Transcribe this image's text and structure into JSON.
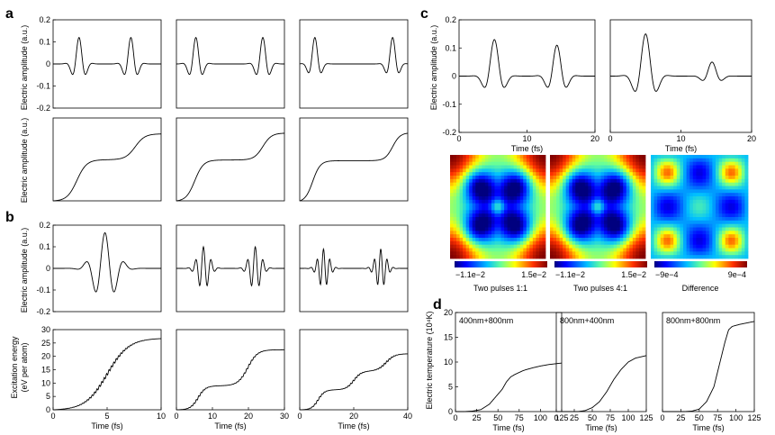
{
  "panel_labels": {
    "a": "a",
    "b": "b",
    "c": "c",
    "d": "d"
  },
  "labels": {
    "electric_amplitude": "Electric amplitude (a.u.)",
    "excitation_energy": "Excitation energy",
    "excitation_energy_unit": "(eV per atom)",
    "electric_temperature": "Electric temperature (10⁴K)",
    "time_fs": "Time (fs)"
  },
  "colorbars": [
    {
      "min": "−1.1e−2",
      "max": "1.5e−2",
      "caption": "Two pulses 1:1"
    },
    {
      "min": "−1.1e−2",
      "max": "1.5e−2",
      "caption": "Two pulses 4:1"
    },
    {
      "min": "−9e−4",
      "max": "9e−4",
      "caption": "Difference"
    }
  ],
  "chart_data": [
    {
      "id": "a1",
      "type": "line",
      "ylim": [
        -0.2,
        0.2
      ],
      "yticks": [
        -0.2,
        -0.1,
        0,
        0.1,
        0.2
      ],
      "ylabel": "Electric amplitude (a.u.)",
      "pulses": [
        {
          "center": 0.24,
          "width": 0.1,
          "amp": 0.12,
          "freq": 7
        },
        {
          "center": 0.72,
          "width": 0.1,
          "amp": 0.12,
          "freq": 7
        }
      ]
    },
    {
      "id": "a2",
      "type": "line",
      "ylim": [
        -0.2,
        0.2
      ],
      "yticks": [],
      "pulses": [
        {
          "center": 0.18,
          "width": 0.1,
          "amp": 0.12,
          "freq": 7
        },
        {
          "center": 0.8,
          "width": 0.1,
          "amp": 0.12,
          "freq": 7
        }
      ]
    },
    {
      "id": "a3",
      "type": "line",
      "ylim": [
        -0.2,
        0.2
      ],
      "yticks": [],
      "pulses": [
        {
          "center": 0.14,
          "width": 0.09,
          "amp": 0.12,
          "freq": 7
        },
        {
          "center": 0.86,
          "width": 0.09,
          "amp": 0.12,
          "freq": 7
        }
      ]
    },
    {
      "id": "a4",
      "type": "line",
      "ylim": [
        0,
        0.8
      ],
      "yticks": [],
      "ylabel": "Electric amplitude (a.u.)",
      "steps": [
        {
          "center": 0.22,
          "width": 0.045,
          "height": 0.4
        },
        {
          "center": 0.76,
          "width": 0.045,
          "height": 0.25
        }
      ]
    },
    {
      "id": "a5",
      "type": "line",
      "ylim": [
        0,
        0.8
      ],
      "yticks": [],
      "steps": [
        {
          "center": 0.17,
          "width": 0.04,
          "height": 0.4
        },
        {
          "center": 0.8,
          "width": 0.04,
          "height": 0.26
        }
      ]
    },
    {
      "id": "a6",
      "type": "line",
      "ylim": [
        0,
        0.8
      ],
      "yticks": [],
      "steps": [
        {
          "center": 0.12,
          "width": 0.035,
          "height": 0.4
        },
        {
          "center": 0.86,
          "width": 0.035,
          "height": 0.27
        }
      ]
    },
    {
      "id": "b1",
      "type": "line",
      "ylim": [
        -0.2,
        0.2
      ],
      "yticks": [
        -0.2,
        -0.1,
        0,
        0.1,
        0.2
      ],
      "ylabel": "Electric amplitude (a.u.)",
      "pulses": [
        {
          "center": 0.48,
          "width": 0.2,
          "amp": 0.165,
          "freq": 5.5
        }
      ]
    },
    {
      "id": "b2",
      "type": "line",
      "ylim": [
        -0.2,
        0.2
      ],
      "yticks": [],
      "pulses": [
        {
          "center": 0.25,
          "width": 0.11,
          "amp": 0.1,
          "freq": 14
        },
        {
          "center": 0.73,
          "width": 0.11,
          "amp": 0.1,
          "freq": 14
        }
      ]
    },
    {
      "id": "b3",
      "type": "line",
      "ylim": [
        -0.2,
        0.2
      ],
      "yticks": [],
      "pulses": [
        {
          "center": 0.22,
          "width": 0.1,
          "amp": 0.09,
          "freq": 17
        },
        {
          "center": 0.75,
          "width": 0.1,
          "amp": 0.09,
          "freq": 17
        }
      ]
    },
    {
      "id": "b4",
      "type": "line",
      "xlim": [
        0,
        10
      ],
      "xticks": [
        0,
        5,
        10
      ],
      "xlabel": "Time (fs)",
      "ylim": [
        0,
        30
      ],
      "yticks": [
        0,
        5,
        10,
        15,
        20,
        25,
        30
      ],
      "steps": [
        {
          "center": 0.5,
          "width": 0.1,
          "height": 27
        }
      ],
      "wiggle": 0.6
    },
    {
      "id": "b5",
      "type": "line",
      "xlim": [
        0,
        30
      ],
      "xticks": [
        0,
        10,
        20,
        30
      ],
      "xlabel": "Time (fs)",
      "ylim": [
        0,
        30
      ],
      "yticks": [],
      "steps": [
        {
          "center": 0.2,
          "width": 0.035,
          "height": 9
        },
        {
          "center": 0.66,
          "width": 0.045,
          "height": 13.5
        }
      ],
      "wiggle": 0.4
    },
    {
      "id": "b6",
      "type": "line",
      "xlim": [
        0,
        40
      ],
      "xticks": [
        0,
        20,
        40
      ],
      "xlabel": "Time (fs)",
      "ylim": [
        0,
        30
      ],
      "yticks": [],
      "steps": [
        {
          "center": 0.17,
          "width": 0.03,
          "height": 7.5
        },
        {
          "center": 0.5,
          "width": 0.035,
          "height": 7
        },
        {
          "center": 0.8,
          "width": 0.04,
          "height": 6.5
        }
      ],
      "wiggle": 0.35
    },
    {
      "id": "c1",
      "type": "line",
      "xlim": [
        0,
        20
      ],
      "xticks": [
        0,
        10,
        20
      ],
      "xlabel": "Time (fs)",
      "ylim": [
        -0.2,
        0.2
      ],
      "yticks": [
        -0.2,
        -0.1,
        0,
        0.1,
        0.2
      ],
      "ylabel": "Electric amplitude (a.u.)",
      "pulses": [
        {
          "center": 0.26,
          "width": 0.11,
          "amp": 0.13,
          "freq": 5.5
        },
        {
          "center": 0.72,
          "width": 0.11,
          "amp": 0.11,
          "freq": 6
        }
      ]
    },
    {
      "id": "c2",
      "type": "line",
      "xlim": [
        0,
        20
      ],
      "xticks": [
        0,
        10,
        20
      ],
      "xlabel": "Time (fs)",
      "ylim": [
        -0.2,
        0.2
      ],
      "yticks": [],
      "pulses": [
        {
          "center": 0.25,
          "width": 0.12,
          "amp": 0.15,
          "freq": 5.5
        },
        {
          "center": 0.72,
          "width": 0.1,
          "amp": 0.05,
          "freq": 6
        }
      ]
    },
    {
      "id": "d1",
      "type": "line",
      "annotation": "400nm+800nm",
      "xlim": [
        0,
        125
      ],
      "xticks": [
        0,
        25,
        50,
        75,
        100,
        125
      ],
      "xlabel": "Time (fs)",
      "ylim": [
        0,
        20
      ],
      "yticks": [
        0,
        5,
        10,
        15,
        20
      ],
      "ylabel": "Electric temperature (10⁴K)",
      "points": [
        [
          0,
          0
        ],
        [
          10,
          0
        ],
        [
          20,
          0.1
        ],
        [
          30,
          0.4
        ],
        [
          40,
          1.5
        ],
        [
          50,
          3.5
        ],
        [
          55,
          4.5
        ],
        [
          60,
          6
        ],
        [
          65,
          7
        ],
        [
          70,
          7.5
        ],
        [
          80,
          8.3
        ],
        [
          90,
          8.8
        ],
        [
          100,
          9.2
        ],
        [
          110,
          9.5
        ],
        [
          125,
          9.8
        ]
      ]
    },
    {
      "id": "d2",
      "type": "line",
      "annotation": "800nm+400nm",
      "xlim": [
        0,
        125
      ],
      "xticks": [
        0,
        25,
        50,
        75,
        100,
        125
      ],
      "xlabel": "Time (fs)",
      "ylim": [
        0,
        20
      ],
      "yticks": [],
      "points": [
        [
          0,
          0
        ],
        [
          20,
          0
        ],
        [
          30,
          0
        ],
        [
          40,
          0.2
        ],
        [
          50,
          0.8
        ],
        [
          60,
          2
        ],
        [
          70,
          4
        ],
        [
          80,
          6.5
        ],
        [
          90,
          8.5
        ],
        [
          100,
          10
        ],
        [
          110,
          10.8
        ],
        [
          125,
          11.3
        ]
      ]
    },
    {
      "id": "d3",
      "type": "line",
      "annotation": "800nm+800nm",
      "xlim": [
        0,
        125
      ],
      "xticks": [
        0,
        25,
        50,
        75,
        100,
        125
      ],
      "xlabel": "Time (fs)",
      "ylim": [
        0,
        20
      ],
      "yticks": [],
      "points": [
        [
          0,
          0
        ],
        [
          30,
          0
        ],
        [
          40,
          0.1
        ],
        [
          50,
          0.5
        ],
        [
          60,
          2
        ],
        [
          70,
          5
        ],
        [
          80,
          11
        ],
        [
          85,
          14
        ],
        [
          90,
          16.5
        ],
        [
          95,
          17.2
        ],
        [
          105,
          17.6
        ],
        [
          125,
          18.2
        ]
      ]
    }
  ]
}
